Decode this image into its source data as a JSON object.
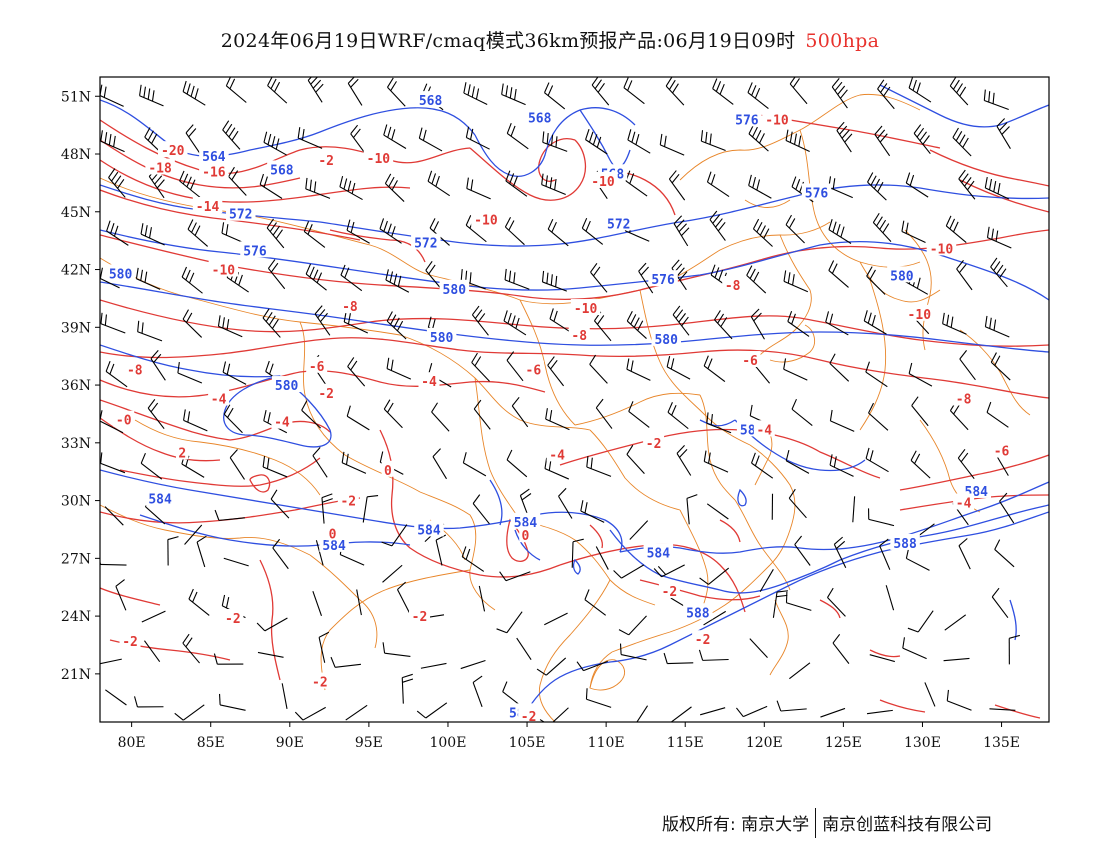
{
  "title": {
    "main": "2024年06月19日WRF/cmaq模式36km预报产品:06月19日09时",
    "level": "500hpa",
    "level_color": "#e8322d"
  },
  "map": {
    "projection": "lat-lon",
    "lon_range": [
      78,
      138
    ],
    "lat_range": [
      18.5,
      52
    ],
    "x_ticks": [
      "80E",
      "85E",
      "90E",
      "95E",
      "100E",
      "105E",
      "110E",
      "115E",
      "120E",
      "125E",
      "130E",
      "135E"
    ],
    "y_ticks": [
      "51N",
      "48N",
      "45N",
      "42N",
      "39N",
      "36N",
      "33N",
      "30N",
      "27N",
      "24N",
      "21N"
    ],
    "colors": {
      "height": "#2f4fe0",
      "temperature": "#e03a36",
      "boundary": "#e8862a",
      "barb": "#000000"
    },
    "height_labels": [
      {
        "text": "568",
        "lon": 98.9,
        "lat": 50.8
      },
      {
        "text": "568",
        "lon": 105.8,
        "lat": 49.9
      },
      {
        "text": "564",
        "lon": 85.2,
        "lat": 47.9
      },
      {
        "text": "568",
        "lon": 89.5,
        "lat": 47.2
      },
      {
        "text": "568",
        "lon": 110.4,
        "lat": 47.0
      },
      {
        "text": "576",
        "lon": 118.9,
        "lat": 49.8
      },
      {
        "text": "576",
        "lon": 123.3,
        "lat": 46.0
      },
      {
        "text": "572",
        "lon": 86.9,
        "lat": 44.9
      },
      {
        "text": "572",
        "lon": 110.8,
        "lat": 44.4
      },
      {
        "text": "572",
        "lon": 98.6,
        "lat": 43.4
      },
      {
        "text": "576",
        "lon": 87.8,
        "lat": 43.0
      },
      {
        "text": "580",
        "lon": 79.3,
        "lat": 41.8
      },
      {
        "text": "576",
        "lon": 113.6,
        "lat": 41.5
      },
      {
        "text": "580",
        "lon": 128.7,
        "lat": 41.7
      },
      {
        "text": "580",
        "lon": 100.4,
        "lat": 41.0
      },
      {
        "text": "580",
        "lon": 99.6,
        "lat": 38.5
      },
      {
        "text": "580",
        "lon": 113.8,
        "lat": 38.4
      },
      {
        "text": "580",
        "lon": 89.8,
        "lat": 36.0
      },
      {
        "text": "584",
        "lon": 81.8,
        "lat": 30.1
      },
      {
        "text": "584",
        "lon": 133.4,
        "lat": 30.5
      },
      {
        "text": "584",
        "lon": 98.8,
        "lat": 28.5
      },
      {
        "text": "584",
        "lon": 104.9,
        "lat": 28.9
      },
      {
        "text": "584",
        "lon": 113.3,
        "lat": 27.3
      },
      {
        "text": "584",
        "lon": 92.8,
        "lat": 27.7
      },
      {
        "text": "588",
        "lon": 128.9,
        "lat": 27.8
      },
      {
        "text": "588",
        "lon": 115.8,
        "lat": 24.2
      },
      {
        "text": "588",
        "lon": 104.6,
        "lat": 19.0
      },
      {
        "text": "584",
        "lon": 119.2,
        "lat": 33.7
      }
    ],
    "temperature_labels": [
      {
        "text": "-20",
        "lon": 82.6,
        "lat": 48.2
      },
      {
        "text": "-18",
        "lon": 81.8,
        "lat": 47.3
      },
      {
        "text": "-16",
        "lon": 85.2,
        "lat": 47.1
      },
      {
        "text": "-2",
        "lon": 92.3,
        "lat": 47.7
      },
      {
        "text": "-10",
        "lon": 95.6,
        "lat": 47.8
      },
      {
        "text": "-10",
        "lon": 120.8,
        "lat": 49.8
      },
      {
        "text": "-10",
        "lon": 109.8,
        "lat": 46.6
      },
      {
        "text": "-10",
        "lon": 102.4,
        "lat": 44.6
      },
      {
        "text": "-14",
        "lon": 84.8,
        "lat": 45.3
      },
      {
        "text": "-10",
        "lon": 85.8,
        "lat": 42.0
      },
      {
        "text": "-10",
        "lon": 131.2,
        "lat": 43.1
      },
      {
        "text": "-8",
        "lon": 118.0,
        "lat": 41.2
      },
      {
        "text": "-8",
        "lon": 93.8,
        "lat": 40.1
      },
      {
        "text": "-10",
        "lon": 108.7,
        "lat": 40.0
      },
      {
        "text": "-10",
        "lon": 129.8,
        "lat": 39.7
      },
      {
        "text": "-8",
        "lon": 108.3,
        "lat": 38.6
      },
      {
        "text": "-6",
        "lon": 105.4,
        "lat": 36.8
      },
      {
        "text": "-8",
        "lon": 80.2,
        "lat": 36.8
      },
      {
        "text": "-6",
        "lon": 91.7,
        "lat": 37.0
      },
      {
        "text": "-6",
        "lon": 119.1,
        "lat": 37.3
      },
      {
        "text": "-4",
        "lon": 98.8,
        "lat": 36.2
      },
      {
        "text": "-4",
        "lon": 85.5,
        "lat": 35.3
      },
      {
        "text": "-2",
        "lon": 92.3,
        "lat": 35.6
      },
      {
        "text": "-8",
        "lon": 132.6,
        "lat": 35.3
      },
      {
        "text": "-0",
        "lon": 79.5,
        "lat": 34.2
      },
      {
        "text": "-4",
        "lon": 89.5,
        "lat": 34.1
      },
      {
        "text": "-4",
        "lon": 120.0,
        "lat": 33.7
      },
      {
        "text": "-2",
        "lon": 113.0,
        "lat": 33.0
      },
      {
        "text": "-4",
        "lon": 106.9,
        "lat": 32.4
      },
      {
        "text": "-6",
        "lon": 135.0,
        "lat": 32.6
      },
      {
        "text": "2",
        "lon": 83.2,
        "lat": 32.5
      },
      {
        "text": "0",
        "lon": 96.2,
        "lat": 31.6
      },
      {
        "text": "-2",
        "lon": 93.7,
        "lat": 30.0
      },
      {
        "text": "-4",
        "lon": 132.6,
        "lat": 29.9
      },
      {
        "text": "0",
        "lon": 92.7,
        "lat": 28.3
      },
      {
        "text": "0",
        "lon": 104.9,
        "lat": 28.2
      },
      {
        "text": "-2",
        "lon": 114.0,
        "lat": 25.3
      },
      {
        "text": "-2",
        "lon": 86.4,
        "lat": 23.9
      },
      {
        "text": "-2",
        "lon": 98.2,
        "lat": 24.0
      },
      {
        "text": "-2",
        "lon": 79.9,
        "lat": 22.7
      },
      {
        "text": "-2",
        "lon": 116.1,
        "lat": 22.8
      },
      {
        "text": "-2",
        "lon": 91.9,
        "lat": 20.6
      },
      {
        "text": "-2",
        "lon": 105.1,
        "lat": 18.8
      }
    ]
  },
  "footer": {
    "left": "版权所有: 南京大学",
    "right": "南京创蓝科技有限公司"
  }
}
